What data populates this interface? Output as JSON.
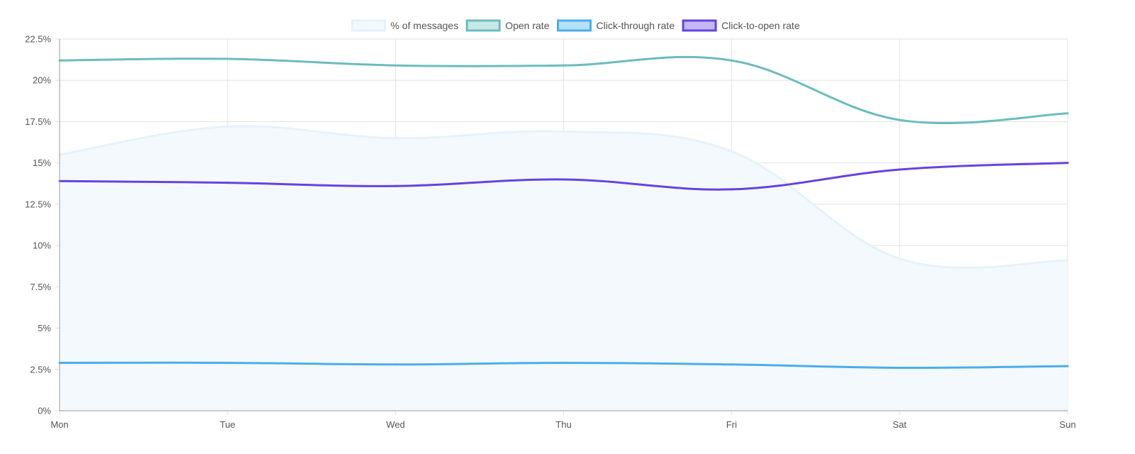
{
  "chart_data": {
    "type": "line",
    "title": "",
    "xlabel": "",
    "ylabel": "",
    "categories": [
      "Mon",
      "Tue",
      "Wed",
      "Thu",
      "Fri",
      "Sat",
      "Sun"
    ],
    "ylim": [
      0,
      22.5
    ],
    "y_ticks": [
      "0%",
      "2.5%",
      "5%",
      "7.5%",
      "10%",
      "12.5%",
      "15%",
      "17.5%",
      "20%",
      "22.5%"
    ],
    "grid": true,
    "legend_position": "top-center",
    "series": [
      {
        "name": "% of messages",
        "values": [
          15.5,
          17.2,
          16.5,
          16.9,
          15.7,
          9.2,
          9.1
        ],
        "color": "#e5f3fb",
        "fill": "#f4f9fd",
        "area": true
      },
      {
        "name": "Open rate",
        "values": [
          21.2,
          21.3,
          20.9,
          20.9,
          21.2,
          17.6,
          18.0
        ],
        "color": "#6cbcbc",
        "fill": "#c6e8e6",
        "area": false
      },
      {
        "name": "Click-through rate",
        "values": [
          2.9,
          2.9,
          2.8,
          2.9,
          2.8,
          2.6,
          2.7
        ],
        "color": "#4aaeea",
        "fill": "#b6e0f8",
        "area": false
      },
      {
        "name": "Click-to-open rate",
        "values": [
          13.9,
          13.8,
          13.6,
          14.0,
          13.4,
          14.6,
          15.0
        ],
        "color": "#6543e0",
        "fill": "#c4b7f5",
        "area": false
      }
    ]
  }
}
